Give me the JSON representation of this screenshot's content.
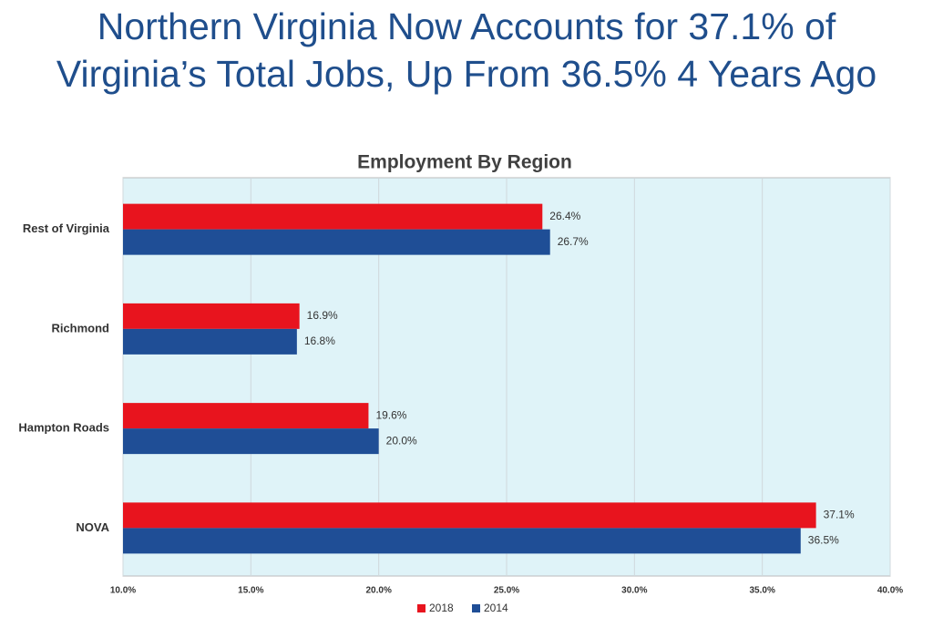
{
  "chart_data": {
    "type": "hbar",
    "title": [
      "Northern Virginia Now Accounts for 37.1% of",
      "Virginia’s Total Jobs, Up From 36.5% 4 Years Ago"
    ],
    "subtitle": "Employment By Region",
    "categories": [
      "Rest of Virginia",
      "Richmond",
      "Hampton Roads",
      "NOVA"
    ],
    "series": [
      {
        "name": "2018",
        "color": "#e8141e",
        "values": [
          26.4,
          16.9,
          19.6,
          37.1
        ],
        "value_labels": [
          "26.4%",
          "16.9%",
          "19.6%",
          "37.1%"
        ]
      },
      {
        "name": "2014",
        "color": "#1f4e96",
        "values": [
          26.7,
          16.8,
          20.0,
          36.5
        ],
        "value_labels": [
          "26.7%",
          "16.8%",
          "20.0%",
          "36.5%"
        ]
      }
    ],
    "xlim": [
      10,
      40
    ],
    "xticks": [
      {
        "value": 10,
        "label": "10.0%"
      },
      {
        "value": 15,
        "label": "15.0%"
      },
      {
        "value": 20,
        "label": "20.0%"
      },
      {
        "value": 25,
        "label": "25.0%"
      },
      {
        "value": 30,
        "label": "30.0%"
      },
      {
        "value": 35,
        "label": "35.0%"
      },
      {
        "value": 40,
        "label": "40.0%"
      }
    ],
    "grid": true,
    "legend": "bottom"
  }
}
